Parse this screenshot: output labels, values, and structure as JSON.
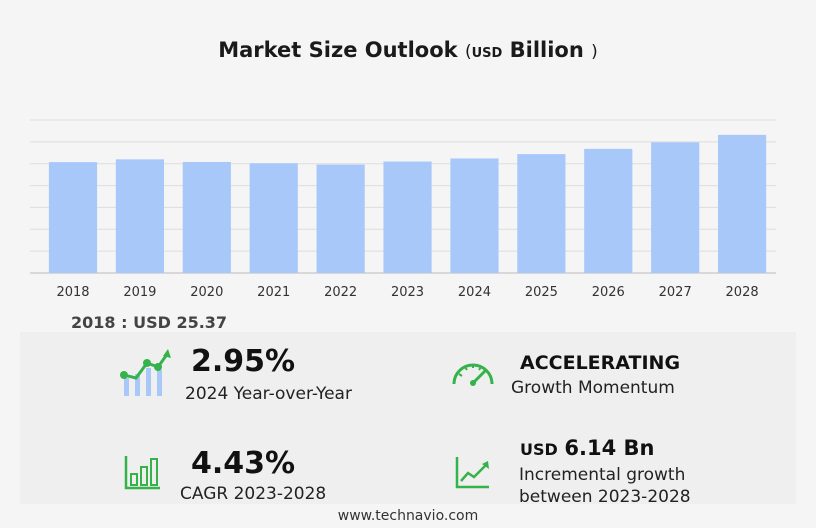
{
  "header": {
    "title": "Market Size Outlook",
    "unit_open": "(",
    "unit": "USD",
    "unit_word": "Billion",
    "unit_close": ")"
  },
  "chart_data": {
    "type": "bar",
    "categories": [
      "2018",
      "2019",
      "2020",
      "2021",
      "2022",
      "2023",
      "2024",
      "2025",
      "2026",
      "2027",
      "2028"
    ],
    "values": [
      25.37,
      26.0,
      25.4,
      25.1,
      24.8,
      25.5,
      26.2,
      27.2,
      28.4,
      29.9,
      31.6
    ],
    "ylim": [
      0,
      35
    ],
    "grid": true,
    "bar_color": "#a8c8fa"
  },
  "base_year": {
    "label": "2018 : USD  25.37"
  },
  "kpis": {
    "yoy": {
      "value": "2.95%",
      "label": "2024 Year-over-Year",
      "icon": "growth-chart-icon"
    },
    "momentum": {
      "value": "ACCELERATING",
      "label": "Growth Momentum",
      "icon": "speedometer-icon"
    },
    "cagr": {
      "value": "4.43%",
      "label": "CAGR 2023-2028",
      "icon": "bar-chart-icon"
    },
    "incremental": {
      "currency": "USD",
      "value": "6.14 Bn",
      "label_line1": "Incremental growth",
      "label_line2": "between 2023-2028",
      "icon": "trend-line-icon"
    }
  },
  "colors": {
    "accent_green": "#35b34a",
    "icon_blue": "#a8c8fa"
  },
  "footer": {
    "source": "www.technavio.com"
  }
}
